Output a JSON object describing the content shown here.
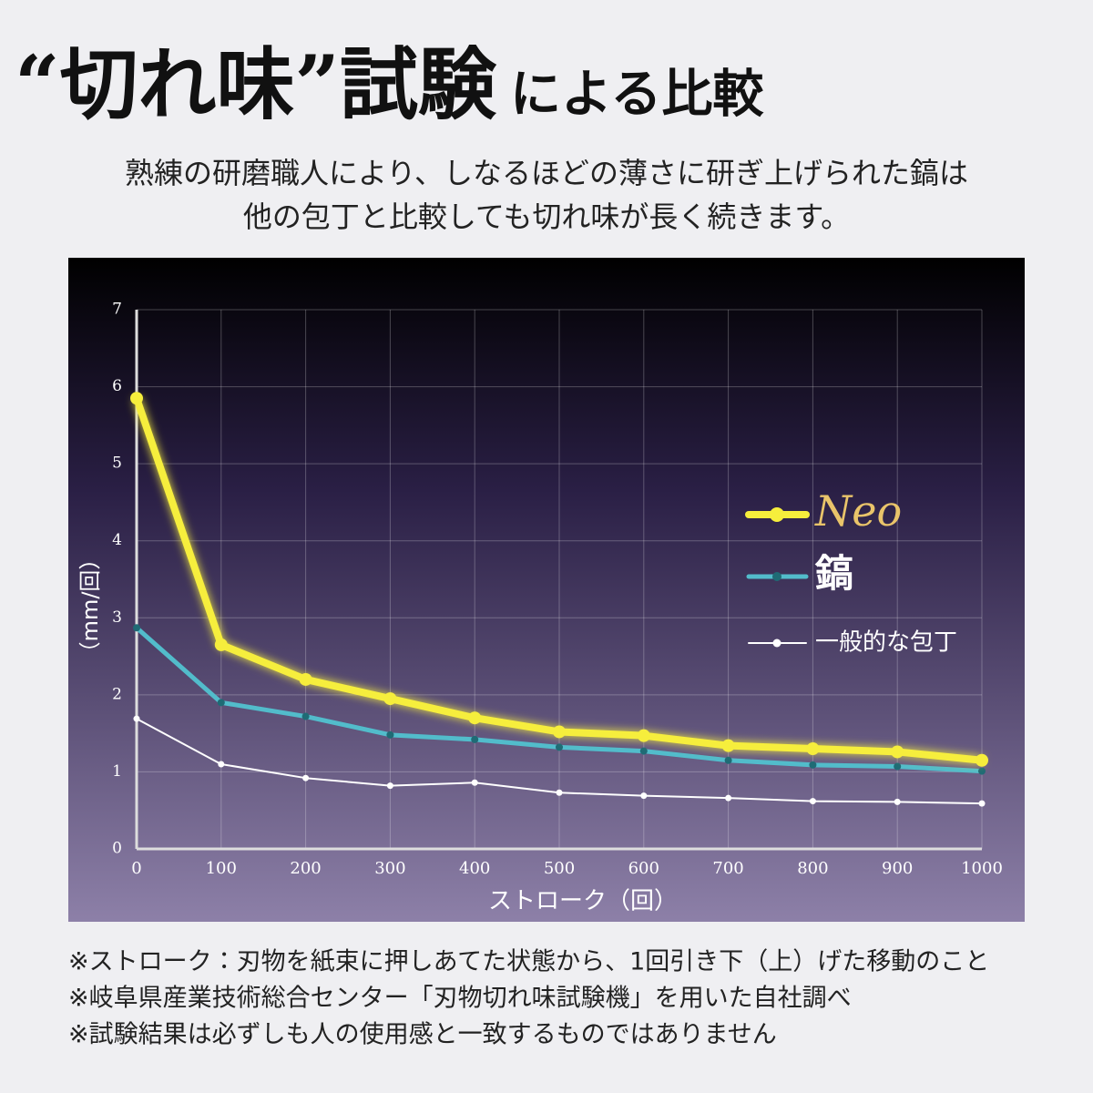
{
  "header": {
    "title_main": "“切れ味”試験",
    "title_sub": "による比較",
    "lines": [
      "熟練の研磨職人により、しなるほどの薄さに研ぎ上げられた鎬は",
      "他の包丁と比較しても切れ味が長く続きます。"
    ]
  },
  "chart_data": {
    "type": "line",
    "x_label": "ストローク（回）",
    "y_label": "（mm/回）",
    "x": [
      0,
      100,
      200,
      300,
      400,
      500,
      600,
      700,
      800,
      900,
      1000
    ],
    "xlim": [
      0,
      1000
    ],
    "xticks": [
      0,
      100,
      200,
      300,
      400,
      500,
      600,
      700,
      800,
      900,
      1000
    ],
    "ylim": [
      0,
      7
    ],
    "yticks": [
      0,
      1,
      2,
      3,
      4,
      5,
      6,
      7
    ],
    "grid": true,
    "series": [
      {
        "name": "Neo",
        "color": "#f6ee3c",
        "values": [
          5.85,
          2.65,
          2.2,
          1.95,
          1.7,
          1.52,
          1.47,
          1.34,
          1.3,
          1.26,
          1.15
        ]
      },
      {
        "name": "鎬",
        "color": "#52bccb",
        "values": [
          2.87,
          1.9,
          1.72,
          1.48,
          1.42,
          1.32,
          1.27,
          1.15,
          1.09,
          1.07,
          1.01
        ]
      },
      {
        "name": "一般的な包丁",
        "color": "#ffffff",
        "values": [
          1.69,
          1.1,
          0.92,
          0.82,
          0.86,
          0.73,
          0.69,
          0.66,
          0.62,
          0.61,
          0.59
        ]
      }
    ]
  },
  "footnotes": [
    "※ストローク：刃物を紙束に押しあてた状態から、1回引き下（上）げた移動のこと",
    "※岐阜県産業技術総合センター「刃物切れ味試験機」を用いた自社調べ",
    "※試験結果は必ずしも人の使用感と一致するものではありません"
  ]
}
